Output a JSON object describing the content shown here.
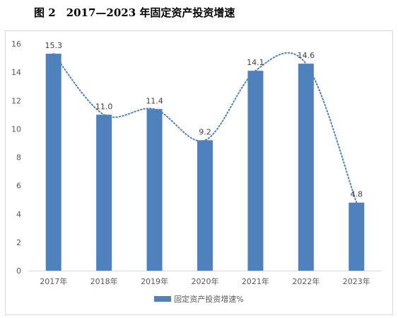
{
  "figure": {
    "title": "图 2　2017—2023 年固定资产投资增速"
  },
  "chart_data": {
    "type": "bar",
    "categories": [
      "2017年",
      "2018年",
      "2019年",
      "2020年",
      "2021年",
      "2022年",
      "2023年"
    ],
    "series": [
      {
        "name": "固定资产投资增速%",
        "values": [
          15.3,
          11.0,
          11.4,
          9.2,
          14.1,
          14.6,
          4.8
        ]
      }
    ],
    "data_labels": [
      "15.3",
      "11.0",
      "11.4",
      "9.2",
      "14.1",
      "14.6",
      "4.8"
    ],
    "ylim": [
      0,
      16
    ],
    "yticks": [
      0,
      2,
      4,
      6,
      8,
      10,
      12,
      14,
      16
    ],
    "trendline": "dotted smooth",
    "legend_position": "bottom",
    "colors": {
      "bar": "#4f81bd",
      "trend": "#4f81bd",
      "axis": "#d9d9d9",
      "text": "#595959"
    }
  }
}
